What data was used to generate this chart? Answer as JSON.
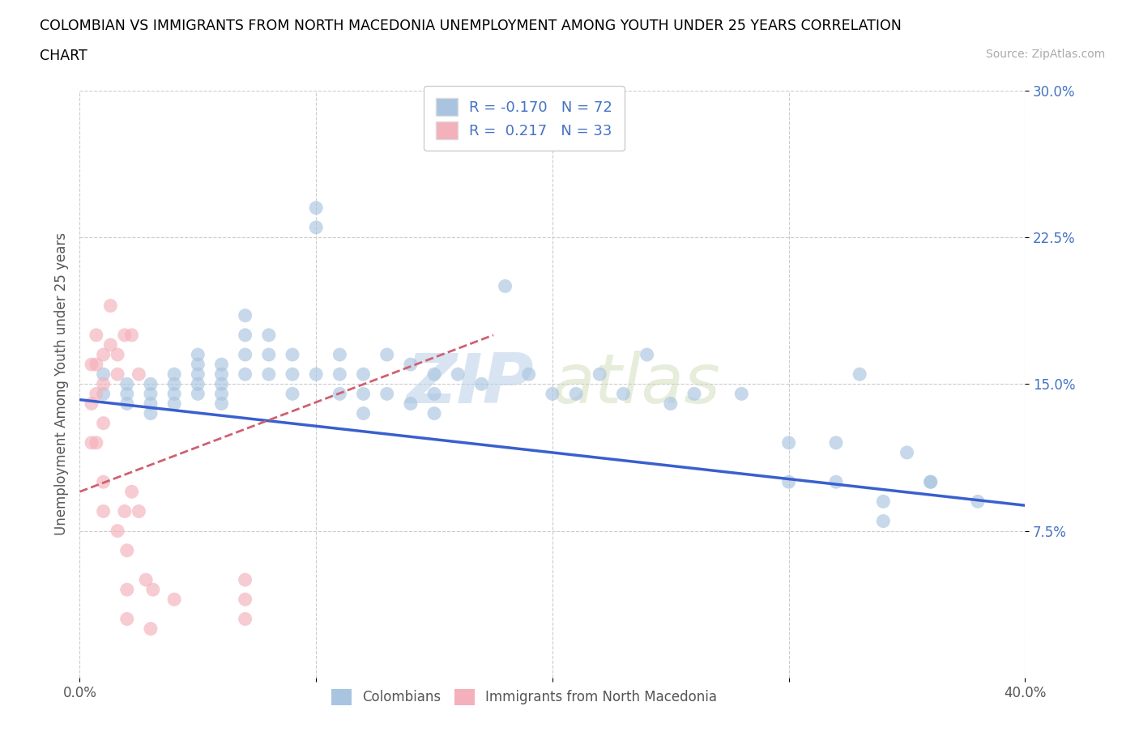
{
  "title_line1": "COLOMBIAN VS IMMIGRANTS FROM NORTH MACEDONIA UNEMPLOYMENT AMONG YOUTH UNDER 25 YEARS CORRELATION",
  "title_line2": "CHART",
  "source": "Source: ZipAtlas.com",
  "ylabel": "Unemployment Among Youth under 25 years",
  "xlim": [
    0.0,
    0.4
  ],
  "ylim": [
    0.0,
    0.3
  ],
  "xticks": [
    0.0,
    0.1,
    0.2,
    0.3,
    0.4
  ],
  "xticklabels": [
    "0.0%",
    "",
    "",
    "",
    "40.0%"
  ],
  "ytick_positions": [
    0.075,
    0.15,
    0.225,
    0.3
  ],
  "ytick_labels": [
    "7.5%",
    "15.0%",
    "22.5%",
    "30.0%"
  ],
  "legend_r1": "R = -0.170",
  "legend_n1": "N = 72",
  "legend_r2": "R =  0.217",
  "legend_n2": "N = 33",
  "color_blue": "#a8c4e0",
  "color_pink": "#f4b0bb",
  "color_blue_line": "#3a5fcd",
  "color_pink_line": "#d06070",
  "color_blue_text": "#4472c4",
  "watermark_zip": "ZIP",
  "watermark_atlas": "atlas",
  "blue_line_x0": 0.0,
  "blue_line_y0": 0.142,
  "blue_line_x1": 0.4,
  "blue_line_y1": 0.088,
  "pink_line_x0": 0.0,
  "pink_line_y0": 0.095,
  "pink_line_x1": 0.175,
  "pink_line_y1": 0.175,
  "colombians_x": [
    0.01,
    0.01,
    0.02,
    0.02,
    0.02,
    0.03,
    0.03,
    0.03,
    0.03,
    0.04,
    0.04,
    0.04,
    0.04,
    0.05,
    0.05,
    0.05,
    0.05,
    0.05,
    0.06,
    0.06,
    0.06,
    0.06,
    0.06,
    0.07,
    0.07,
    0.07,
    0.07,
    0.08,
    0.08,
    0.08,
    0.09,
    0.09,
    0.09,
    0.1,
    0.1,
    0.1,
    0.11,
    0.11,
    0.11,
    0.12,
    0.12,
    0.12,
    0.13,
    0.13,
    0.14,
    0.14,
    0.15,
    0.15,
    0.15,
    0.16,
    0.17,
    0.18,
    0.19,
    0.2,
    0.21,
    0.22,
    0.23,
    0.24,
    0.25,
    0.26,
    0.28,
    0.3,
    0.32,
    0.34,
    0.36,
    0.38,
    0.3,
    0.32,
    0.34,
    0.33,
    0.36,
    0.35
  ],
  "colombians_y": [
    0.155,
    0.145,
    0.15,
    0.145,
    0.14,
    0.15,
    0.145,
    0.14,
    0.135,
    0.155,
    0.15,
    0.145,
    0.14,
    0.165,
    0.16,
    0.155,
    0.15,
    0.145,
    0.16,
    0.155,
    0.15,
    0.145,
    0.14,
    0.185,
    0.175,
    0.165,
    0.155,
    0.175,
    0.165,
    0.155,
    0.165,
    0.155,
    0.145,
    0.24,
    0.23,
    0.155,
    0.165,
    0.155,
    0.145,
    0.155,
    0.145,
    0.135,
    0.165,
    0.145,
    0.16,
    0.14,
    0.155,
    0.145,
    0.135,
    0.155,
    0.15,
    0.2,
    0.155,
    0.145,
    0.145,
    0.155,
    0.145,
    0.165,
    0.14,
    0.145,
    0.145,
    0.1,
    0.12,
    0.09,
    0.1,
    0.09,
    0.12,
    0.1,
    0.08,
    0.155,
    0.1,
    0.115
  ],
  "macedonia_x": [
    0.005,
    0.005,
    0.005,
    0.007,
    0.007,
    0.007,
    0.007,
    0.01,
    0.01,
    0.01,
    0.01,
    0.013,
    0.013,
    0.016,
    0.016,
    0.016,
    0.019,
    0.019,
    0.022,
    0.022,
    0.025,
    0.025,
    0.028,
    0.031,
    0.04,
    0.07,
    0.07,
    0.07,
    0.01,
    0.02,
    0.02,
    0.02,
    0.03
  ],
  "macedonia_y": [
    0.16,
    0.14,
    0.12,
    0.175,
    0.16,
    0.145,
    0.12,
    0.165,
    0.15,
    0.13,
    0.1,
    0.19,
    0.17,
    0.165,
    0.155,
    0.075,
    0.175,
    0.085,
    0.175,
    0.095,
    0.155,
    0.085,
    0.05,
    0.045,
    0.04,
    0.05,
    0.04,
    0.03,
    0.085,
    0.065,
    0.045,
    0.03,
    0.025
  ]
}
